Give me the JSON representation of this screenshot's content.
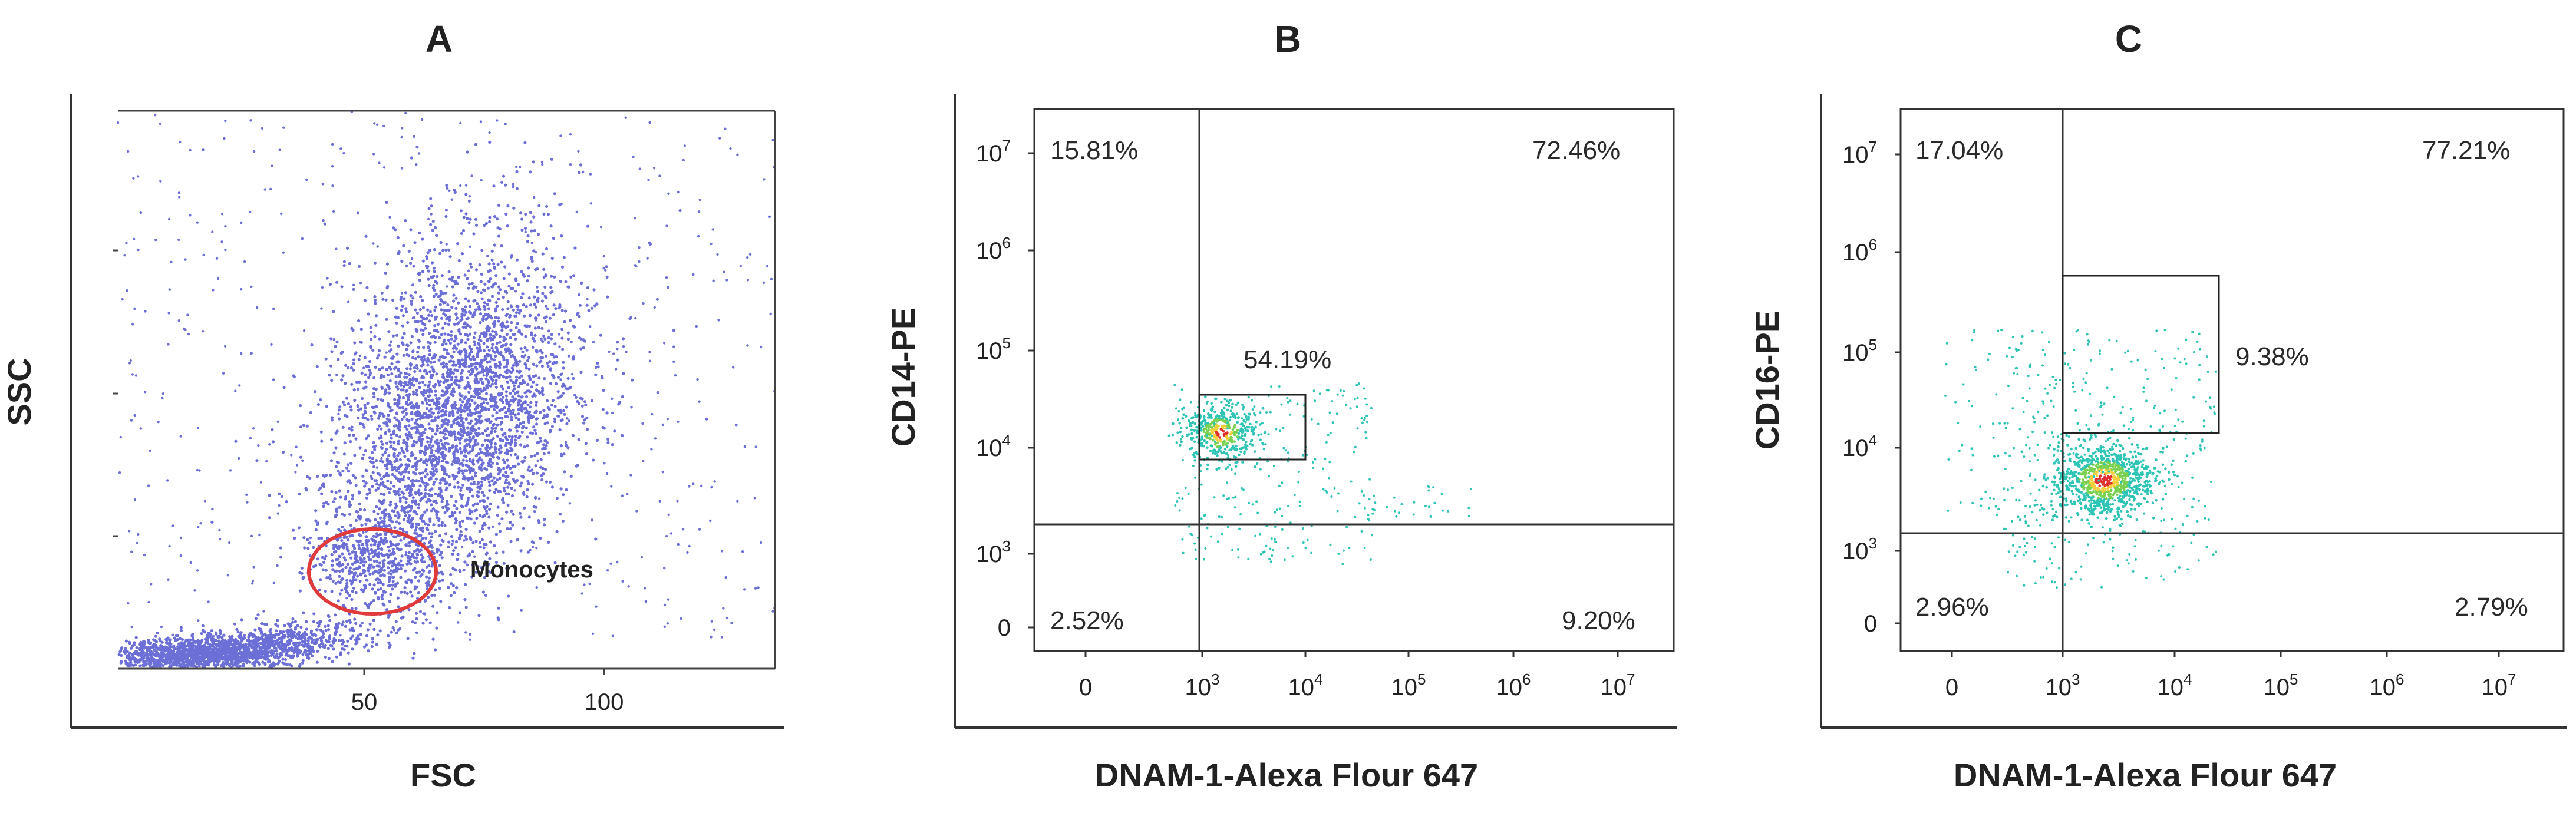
{
  "colors": {
    "dots_a": "#6b6fd6",
    "dots_density_low": "#2ec4b6",
    "dots_density_mid": "#7ad151",
    "dots_density_high": "#f4d03f",
    "dots_density_peak": "#e03131",
    "gate_ellipse": "#e03a3a",
    "frame": "#333333"
  },
  "panels": [
    {
      "letter": "A",
      "xlabel": "FSC",
      "ylabel": "SSC",
      "x_ticks": [
        "50",
        "100"
      ],
      "gate_label": "Monocytes"
    },
    {
      "letter": "B",
      "xlabel": "DNAM-1-Alexa Flour 647",
      "ylabel": "CD14-PE",
      "x_ticks": [
        {
          "base": "0",
          "exp": ""
        },
        {
          "base": "10",
          "exp": "3"
        },
        {
          "base": "10",
          "exp": "4"
        },
        {
          "base": "10",
          "exp": "5"
        },
        {
          "base": "10",
          "exp": "6"
        },
        {
          "base": "10",
          "exp": "7"
        }
      ],
      "y_ticks": [
        {
          "base": "10",
          "exp": "7"
        },
        {
          "base": "10",
          "exp": "6"
        },
        {
          "base": "10",
          "exp": "5"
        },
        {
          "base": "10",
          "exp": "4"
        },
        {
          "base": "10",
          "exp": "3"
        },
        {
          "base": "0",
          "exp": ""
        }
      ],
      "quadrants": {
        "ul": "15.81%",
        "ur": "72.46%",
        "ll": "2.52%",
        "lr": "9.20%"
      },
      "gate_pct": "54.19%"
    },
    {
      "letter": "C",
      "xlabel": "DNAM-1-Alexa Flour 647",
      "ylabel": "CD16-PE",
      "x_ticks": [
        {
          "base": "0",
          "exp": ""
        },
        {
          "base": "10",
          "exp": "3"
        },
        {
          "base": "10",
          "exp": "4"
        },
        {
          "base": "10",
          "exp": "5"
        },
        {
          "base": "10",
          "exp": "6"
        },
        {
          "base": "10",
          "exp": "7"
        }
      ],
      "y_ticks": [
        {
          "base": "10",
          "exp": "7"
        },
        {
          "base": "10",
          "exp": "6"
        },
        {
          "base": "10",
          "exp": "5"
        },
        {
          "base": "10",
          "exp": "4"
        },
        {
          "base": "10",
          "exp": "3"
        },
        {
          "base": "0",
          "exp": ""
        }
      ],
      "quadrants": {
        "ul": "17.04%",
        "ur": "77.21%",
        "ll": "2.96%",
        "lr": "2.79%"
      },
      "gate_pct": "9.38%"
    }
  ],
  "chart_data": [
    {
      "type": "scatter",
      "panel": "A",
      "xlabel": "FSC",
      "ylabel": "SSC",
      "xlim": [
        0,
        140
      ],
      "x_ticks": [
        50,
        100
      ],
      "clusters": [
        {
          "center": [
            70,
            0.6
          ],
          "count": 3400
        },
        {
          "center": [
            54,
            0.23
          ],
          "count": 500
        },
        {
          "center": [
            15,
            0.04
          ],
          "count": 1500
        }
      ],
      "gates": [
        {
          "name": "Monocytes",
          "shape": "ellipse",
          "center": [
            55,
            0.22
          ]
        }
      ]
    },
    {
      "type": "scatter",
      "panel": "B",
      "xlabel": "DNAM-1-Alexa Flour 647",
      "ylabel": "CD14-PE",
      "scale": "biexponential",
      "quadrant_values": {
        "upper_left": 15.81,
        "upper_right": 72.46,
        "lower_left": 2.52,
        "lower_right": 9.2
      },
      "gate": {
        "label": 54.19,
        "x_range": [
          1000,
          8000
        ],
        "y_range": [
          3000,
          15000
        ]
      }
    },
    {
      "type": "scatter",
      "panel": "C",
      "xlabel": "DNAM-1-Alexa Flour 647",
      "ylabel": "CD16-PE",
      "scale": "biexponential",
      "quadrant_values": {
        "upper_left": 17.04,
        "upper_right": 77.21,
        "lower_left": 2.96,
        "lower_right": 2.79
      },
      "gate": {
        "label": 9.38,
        "x_range": [
          1000,
          25000
        ],
        "y_range": [
          6000,
          300000
        ]
      }
    }
  ]
}
